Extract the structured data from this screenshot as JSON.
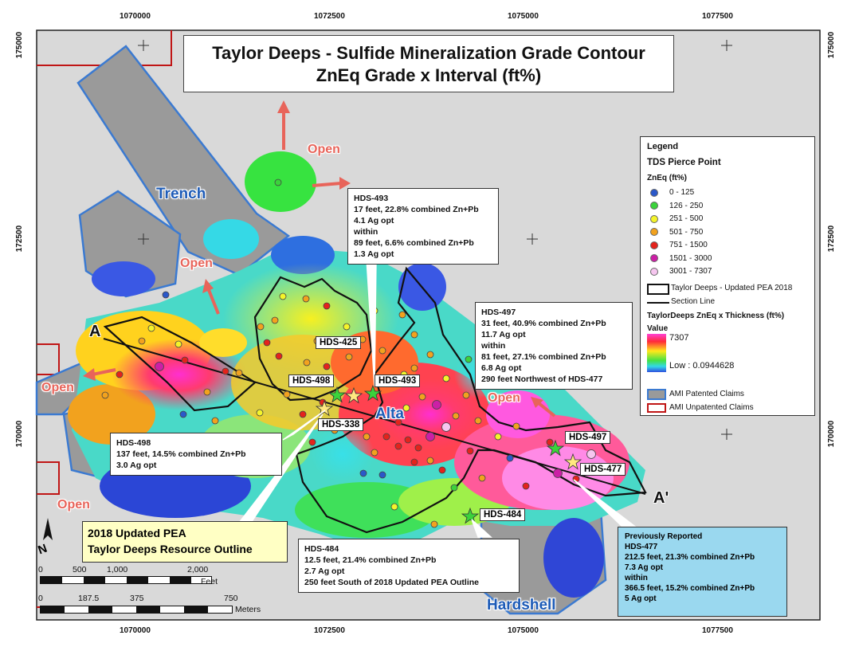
{
  "title": {
    "line1": "Taylor Deeps - Sulfide Mineralization Grade Contour",
    "line2": "ZnEq Grade x Interval (ft%)"
  },
  "axes": {
    "x_ticks": [
      "1070000",
      "1072500",
      "1075000",
      "1077500"
    ],
    "y_ticks": [
      "175000",
      "172500",
      "170000"
    ]
  },
  "area_labels": {
    "trench": "Trench",
    "alta": "Alta",
    "hardshell": "Hardshell"
  },
  "open_label": "Open",
  "section": {
    "start": "A",
    "end": "A'"
  },
  "holes": {
    "hds_425": "HDS-425",
    "hds_498": "HDS-498",
    "hds_493": "HDS-493",
    "hds_338": "HDS-338",
    "hds_497": "HDS-497",
    "hds_477": "HDS-477",
    "hds_484": "HDS-484"
  },
  "callouts": {
    "hds_493": [
      "HDS-493",
      "17 feet, 22.8% combined Zn+Pb",
      "4.1 Ag opt",
      "within",
      "89 feet, 6.6% combined Zn+Pb",
      "1.3 Ag opt"
    ],
    "hds_497": [
      "HDS-497",
      "31 feet, 40.9% combined Zn+Pb",
      "11.7 Ag opt",
      "within",
      "81 feet, 27.1% combined Zn+Pb",
      "6.8 Ag opt",
      "290 feet Northwest of HDS-477"
    ],
    "hds_498": [
      "HDS-498",
      "137 feet, 14.5% combined Zn+Pb",
      "3.0 Ag opt"
    ],
    "hds_484": [
      "HDS-484",
      "12.5 feet, 21.4% combined Zn+Pb",
      "2.7 Ag opt",
      "250 feet South of 2018 Updated PEA Outline"
    ],
    "previously_reported": [
      "Previously Reported",
      "HDS-477",
      "212.5 feet, 21.3% combined Zn+Pb",
      "7.3 Ag opt",
      "within",
      "366.5 feet, 15.2% combined Zn+Pb",
      "5 Ag opt"
    ]
  },
  "pea_box": {
    "line1": "2018 Updated PEA",
    "line2": "Taylor Deeps Resource Outline"
  },
  "legend": {
    "title": "Legend",
    "pierce_title": "TDS Pierce Point",
    "zneq_title": "ZnEq (ft%)",
    "classes": [
      {
        "label": "0 - 125",
        "color": "#2b58c9"
      },
      {
        "label": "126 - 250",
        "color": "#3bd33b"
      },
      {
        "label": "251 - 500",
        "color": "#f4f42a"
      },
      {
        "label": "501 - 750",
        "color": "#f2a21e"
      },
      {
        "label": "751 - 1500",
        "color": "#e4231c"
      },
      {
        "label": "1501 - 3000",
        "color": "#cc1fa6"
      },
      {
        "label": "3001 - 7307",
        "color": "#f6c6ef"
      }
    ],
    "pea_outline": "Taylor Deeps - Updated PEA 2018",
    "section_line": "Section Line",
    "raster_title": "TaylorDeeps ZnEq x Thickness (ft%)",
    "value_label": "Value",
    "high": "7307",
    "low": "Low : 0.0944628",
    "patented": "AMI Patented Claims",
    "unpatented": "AMI Unpatented Claims"
  },
  "scale": {
    "feet_ticks": [
      "0",
      "500",
      "1,000",
      "2,000"
    ],
    "feet_unit": "Feet",
    "meter_ticks": [
      "0",
      "187.5",
      "375",
      "750"
    ],
    "meter_unit": "Meters"
  },
  "north": "N",
  "colors": {
    "claims_fill": "#9a9a9a",
    "claims_border": "#3b7ad1",
    "unpatented_border": "#c01515",
    "background": "#d9d9d9",
    "open_arrow": "#e8645a",
    "area_label": "#1d5bb7"
  }
}
